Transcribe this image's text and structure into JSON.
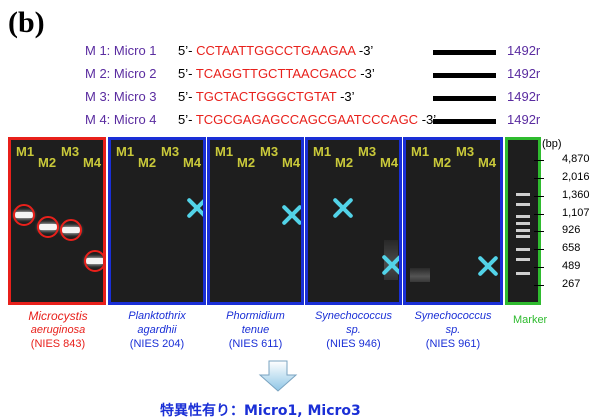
{
  "panel_label": "(b)",
  "primers": [
    {
      "name": "M 1: Micro 1",
      "five": "5’-",
      "sequence": "CCTAATTGGCCTGAAGAA",
      "three": "-3’",
      "reverse": "1492r"
    },
    {
      "name": "M 2: Micro 2",
      "five": "5’-",
      "sequence": "TCAGGTTGCTTAACGACC",
      "three": "-3’",
      "reverse": "1492r"
    },
    {
      "name": "M 3: Micro 3",
      "five": "5’-",
      "sequence": "TGCTACTGGGCTGTAT",
      "three": "-3’",
      "reverse": "1492r"
    },
    {
      "name": "M 4: Micro 4",
      "five": "5’-",
      "sequence": "TCGCGAGAGCCAGCGAATCCCAGC",
      "three": "-3’",
      "reverse": "1492r"
    }
  ],
  "lanes": {
    "m1": "M1",
    "m2": "M2",
    "m3": "M3",
    "m4": "M4"
  },
  "gels": [
    {
      "species": "Microcystis aeruginosa",
      "species_line1": "Microcystis",
      "species_line2": "aeruginosa",
      "strain": "(NIES 843)",
      "border": "#e8201b",
      "amplified": [
        "M1",
        "M2",
        "M3",
        "M4"
      ]
    },
    {
      "species_line1": "Planktothrix",
      "species_line2": "agardhii",
      "strain": "(NIES 204)",
      "border": "#1a2fd6",
      "amplified": []
    },
    {
      "species_line1": "Phormidium",
      "species_line2": "tenue",
      "strain": "(NIES 611)",
      "border": "#1a2fd6",
      "amplified": []
    },
    {
      "species_line1": "Synechococcus",
      "species_line2": "sp.",
      "strain": "(NIES 946)",
      "border": "#1a2fd6",
      "amplified": []
    },
    {
      "species_line1": "Synechococcus",
      "species_line2": "sp.",
      "strain": "(NIES 961)",
      "border": "#1a2fd6",
      "amplified": []
    }
  ],
  "marker": {
    "label": "Marker",
    "unit": "(bp)",
    "sizes": [
      "4,870",
      "2,016",
      "1,360",
      "1,107",
      "926",
      "658",
      "489",
      "267"
    ]
  },
  "conclusion": "特異性有り：Micro1, Micro3",
  "colors": {
    "positive": "#e8201b",
    "negative": "#1a2fd6",
    "marker": "#2fbb2f",
    "primer_name": "#5a2ca0",
    "cross": "#52d3e8"
  }
}
